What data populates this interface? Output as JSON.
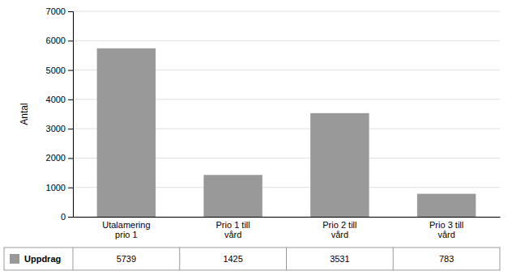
{
  "chart_data": {
    "type": "bar",
    "categories": [
      "Utalamering\nprio 1",
      "Prio 1 till\nvård",
      "Prio 2 till\nvård",
      "Prio 3 till\nvård"
    ],
    "series": [
      {
        "name": "Uppdrag",
        "color": "#999999",
        "values": [
          5739,
          1425,
          3531,
          783
        ]
      }
    ],
    "ylabel": "Antal",
    "ylim": [
      0,
      7000
    ],
    "yticks": [
      0,
      1000,
      2000,
      3000,
      4000,
      5000,
      6000,
      7000
    ],
    "grid": true,
    "legend": "bottom",
    "data_labels": true
  }
}
